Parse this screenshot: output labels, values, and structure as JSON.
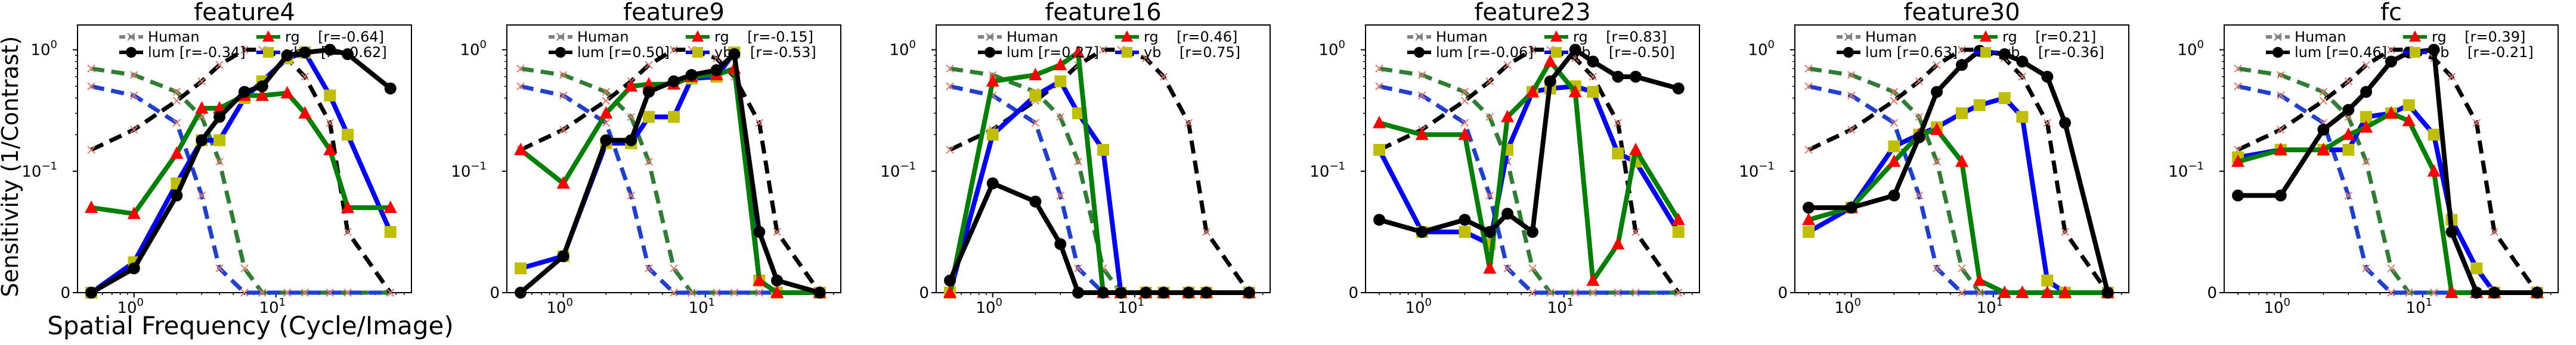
{
  "figure": {
    "ylabel": "Sensitivity (1/Contrast)",
    "xlabel": "Spatial Frequency (Cycle/Image)"
  },
  "colors": {
    "human": "#808080",
    "lum": "#000000",
    "rg": "#008000",
    "yb": "#0000ff",
    "rg_marker": "#ff0000",
    "yb_marker": "#bfbf00",
    "human_lum_dash": "#000000",
    "human_rg_dash": "#2e7d32",
    "human_yb_dash": "#1f3fd0"
  },
  "chart_data": [
    {
      "type": "line",
      "title": "feature4",
      "xscale": "log",
      "yscale": "symlog",
      "xlim": [
        0.4,
        90
      ],
      "ylim": [
        0,
        1.6
      ],
      "xticks": [
        "10^0",
        "10^1"
      ],
      "yticks": [
        "0",
        "10^-1",
        "10^0"
      ],
      "legend": [
        "Human",
        "lum [r=-0.34]",
        "rg    [r=-0.64]",
        "yb    [r=-0.62]"
      ],
      "x": [
        0.5,
        1,
        2,
        3,
        4,
        6,
        8,
        12,
        16,
        24,
        32,
        64
      ],
      "series": [
        {
          "name": "lum [r=-0.34]",
          "values": [
            0.0,
            0.02,
            0.08,
            0.18,
            0.28,
            0.45,
            0.5,
            0.9,
            0.95,
            1.0,
            0.92,
            0.48
          ]
        },
        {
          "name": "rg    [r=-0.64]",
          "values": [
            0.07,
            0.065,
            0.14,
            0.33,
            0.33,
            0.42,
            0.42,
            0.44,
            0.3,
            0.15,
            0.07,
            0.07
          ]
        },
        {
          "name": "yb    [r=-0.62]",
          "values": [
            0.0,
            0.025,
            0.09,
            0.18,
            0.18,
            0.4,
            0.55,
            0.85,
            0.95,
            0.42,
            0.2,
            0.05
          ]
        }
      ]
    },
    {
      "type": "line",
      "title": "feature9",
      "xscale": "log",
      "yscale": "symlog",
      "xlim": [
        0.4,
        90
      ],
      "ylim": [
        0,
        1.6
      ],
      "xticks": [
        "10^0",
        "10^1"
      ],
      "yticks": [
        "0",
        "10^-1",
        "10^0"
      ],
      "legend": [
        "Human",
        "lum [r=0.50]",
        "rg    [r=-0.15]",
        "yb    [r=-0.53]"
      ],
      "x": [
        0.5,
        1,
        2,
        3,
        4,
        6,
        8,
        12,
        16,
        24,
        32,
        64
      ],
      "series": [
        {
          "name": "lum [r=0.50]",
          "values": [
            0.0,
            0.03,
            0.18,
            0.18,
            0.45,
            0.55,
            0.62,
            0.68,
            0.92,
            0.05,
            0.01,
            0.0
          ]
        },
        {
          "name": "rg    [r=-0.15]",
          "values": [
            0.15,
            0.09,
            0.3,
            0.5,
            0.52,
            0.52,
            0.6,
            0.62,
            0.7,
            0.01,
            0.0,
            0.0
          ]
        },
        {
          "name": "yb    [r=-0.53]",
          "values": [
            0.02,
            0.03,
            0.17,
            0.17,
            0.28,
            0.28,
            0.58,
            0.6,
            0.95,
            0.01,
            0.0,
            0.0
          ]
        }
      ]
    },
    {
      "type": "line",
      "title": "feature16",
      "xscale": "log",
      "yscale": "symlog",
      "xlim": [
        0.4,
        90
      ],
      "ylim": [
        0,
        1.6
      ],
      "xticks": [
        "10^0",
        "10^1"
      ],
      "yticks": [
        "0",
        "10^-1",
        "10^0"
      ],
      "legend": [
        "Human",
        "lum [r=0.27]",
        "rg    [r=0.46]",
        "yb    [r=0.75]"
      ],
      "x": [
        0.5,
        1,
        2,
        3,
        4,
        6,
        8,
        12,
        16,
        24,
        32,
        64
      ],
      "series": [
        {
          "name": "lum [r=0.27]",
          "values": [
            0.01,
            0.09,
            0.075,
            0.04,
            0.0,
            0.0,
            0.0,
            0.0,
            0.0,
            0.0,
            0.0,
            0.0
          ]
        },
        {
          "name": "rg    [r=0.46]",
          "values": [
            0.0,
            0.55,
            0.62,
            0.75,
            0.95,
            0.0,
            0.0,
            0.0,
            0.0,
            0.0,
            0.0,
            0.0
          ]
        },
        {
          "name": "yb    [r=0.75]",
          "values": [
            0.0,
            0.2,
            0.42,
            0.55,
            0.3,
            0.15,
            0.0,
            0.0,
            0.0,
            0.0,
            0.0,
            0.0
          ]
        }
      ]
    },
    {
      "type": "line",
      "title": "feature23",
      "xscale": "log",
      "yscale": "symlog",
      "xlim": [
        0.4,
        90
      ],
      "ylim": [
        0,
        1.6
      ],
      "xticks": [
        "10^0",
        "10^1"
      ],
      "yticks": [
        "0",
        "10^-1",
        "10^0"
      ],
      "legend": [
        "Human",
        "lum [r=-0.06]",
        "rg    [r=0.83]",
        "yb    [r=-0.50]"
      ],
      "x": [
        0.5,
        1,
        2,
        3,
        4,
        6,
        8,
        12,
        16,
        24,
        32,
        64
      ],
      "series": [
        {
          "name": "lum [r=-0.06]",
          "values": [
            0.06,
            0.05,
            0.06,
            0.05,
            0.065,
            0.05,
            0.55,
            1.0,
            0.8,
            0.6,
            0.6,
            0.48
          ]
        },
        {
          "name": "rg    [r=0.83]",
          "values": [
            0.25,
            0.2,
            0.2,
            0.02,
            0.28,
            0.45,
            0.8,
            0.45,
            0.01,
            0.04,
            0.15,
            0.06
          ]
        },
        {
          "name": "yb    [r=-0.50]",
          "values": [
            0.15,
            0.05,
            0.05,
            0.04,
            0.15,
            0.45,
            0.48,
            0.5,
            0.45,
            0.14,
            0.12,
            0.05
          ]
        }
      ]
    },
    {
      "type": "line",
      "title": "feature30",
      "xscale": "log",
      "yscale": "symlog",
      "xlim": [
        0.4,
        90
      ],
      "ylim": [
        0,
        1.6
      ],
      "xticks": [
        "10^0",
        "10^1"
      ],
      "yticks": [
        "0",
        "10^-1",
        "10^0"
      ],
      "legend": [
        "Human",
        "lum [r=0.63]",
        "rg    [r=0.21]",
        "yb    [r=-0.36]"
      ],
      "x": [
        0.5,
        1,
        2,
        3,
        4,
        6,
        8,
        12,
        16,
        24,
        32,
        64
      ],
      "series": [
        {
          "name": "lum [r=0.63]",
          "values": [
            0.07,
            0.07,
            0.08,
            0.19,
            0.45,
            0.75,
            0.98,
            0.92,
            0.8,
            0.6,
            0.25,
            0.0
          ]
        },
        {
          "name": "rg    [r=0.21]",
          "values": [
            0.06,
            0.07,
            0.12,
            0.2,
            0.22,
            0.12,
            0.01,
            0.0,
            0.0,
            0.0,
            0.0,
            0.0
          ]
        },
        {
          "name": "yb    [r=-0.36]",
          "values": [
            0.05,
            0.07,
            0.16,
            0.2,
            0.23,
            0.3,
            0.35,
            0.4,
            0.28,
            0.01,
            0.0,
            0.0
          ]
        }
      ]
    },
    {
      "type": "line",
      "title": "fc",
      "xscale": "log",
      "yscale": "symlog",
      "xlim": [
        0.4,
        90
      ],
      "ylim": [
        0,
        1.6
      ],
      "xticks": [
        "10^0",
        "10^1"
      ],
      "yticks": [
        "0",
        "10^-1",
        "10^0"
      ],
      "legend": [
        "Human",
        "lum [r=0.46]",
        "rg    [r=0.39]",
        "yb    [r=-0.21]"
      ],
      "x": [
        0.5,
        1,
        2,
        3,
        4,
        6,
        8,
        12,
        16,
        24,
        32,
        64
      ],
      "series": [
        {
          "name": "lum [r=0.46]",
          "values": [
            0.08,
            0.08,
            0.22,
            0.32,
            0.45,
            0.8,
            0.95,
            1.0,
            0.05,
            0.0,
            0.0,
            0.0
          ]
        },
        {
          "name": "rg    [r=0.39]",
          "values": [
            0.12,
            0.15,
            0.15,
            0.2,
            0.23,
            0.3,
            0.26,
            0.1,
            0.0,
            0.0,
            0.0,
            0.0
          ]
        },
        {
          "name": "yb    [r=-0.21]",
          "values": [
            0.13,
            0.15,
            0.15,
            0.15,
            0.28,
            0.3,
            0.35,
            0.2,
            0.06,
            0.02,
            0.0,
            0.0
          ]
        }
      ]
    }
  ],
  "human_reference": {
    "lum_x": [
      0.5,
      1,
      2,
      3,
      4,
      6,
      8,
      12,
      16,
      24,
      32,
      64
    ],
    "lum_values": [
      0.15,
      0.22,
      0.38,
      0.55,
      0.75,
      1.0,
      1.0,
      0.85,
      0.6,
      0.25,
      0.05,
      0.0
    ],
    "rg_x": [
      0.5,
      1,
      2,
      3,
      4,
      6,
      8,
      12,
      16,
      24,
      32,
      64
    ],
    "rg_values": [
      0.7,
      0.62,
      0.45,
      0.28,
      0.12,
      0.02,
      0.0,
      0.0,
      0.0,
      0.0,
      0.0,
      0.0
    ],
    "yb_x": [
      0.5,
      1,
      2,
      3,
      4,
      6,
      8,
      12,
      16,
      24,
      32,
      64
    ],
    "yb_values": [
      0.5,
      0.42,
      0.25,
      0.08,
      0.02,
      0.0,
      0.0,
      0.0,
      0.0,
      0.0,
      0.0,
      0.0
    ]
  }
}
